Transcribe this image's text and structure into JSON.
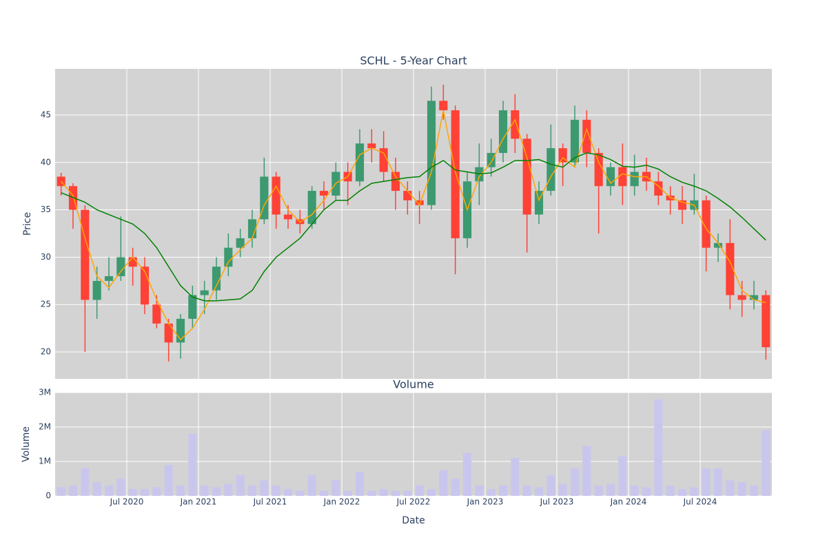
{
  "chart_data": [
    {
      "type": "candlestick",
      "title": "SCHL - 5-Year Chart",
      "y_label": "Price",
      "x": [
        "2020-01",
        "2020-02",
        "2020-03",
        "2020-04",
        "2020-05",
        "2020-06",
        "2020-07",
        "2020-08",
        "2020-09",
        "2020-10",
        "2020-11",
        "2020-12",
        "2021-01",
        "2021-02",
        "2021-03",
        "2021-04",
        "2021-05",
        "2021-06",
        "2021-07",
        "2021-08",
        "2021-09",
        "2021-10",
        "2021-11",
        "2021-12",
        "2022-01",
        "2022-02",
        "2022-03",
        "2022-04",
        "2022-05",
        "2022-06",
        "2022-07",
        "2022-08",
        "2022-09",
        "2022-10",
        "2022-11",
        "2022-12",
        "2023-01",
        "2023-02",
        "2023-03",
        "2023-04",
        "2023-05",
        "2023-06",
        "2023-07",
        "2023-08",
        "2023-09",
        "2023-10",
        "2023-11",
        "2023-12",
        "2024-01",
        "2024-02",
        "2024-03",
        "2024-04",
        "2024-05",
        "2024-06",
        "2024-07",
        "2024-08",
        "2024-09",
        "2024-10",
        "2024-11",
        "2024-12"
      ],
      "open": [
        38.5,
        37.5,
        35.0,
        25.5,
        27.5,
        28.0,
        30.0,
        29.0,
        25.0,
        23.0,
        21.0,
        23.5,
        26.0,
        26.5,
        29.0,
        31.0,
        32.0,
        34.0,
        38.5,
        34.5,
        34.0,
        33.5,
        37.0,
        36.5,
        39.0,
        38.0,
        42.0,
        41.5,
        39.0,
        37.0,
        36.0,
        35.5,
        46.5,
        45.5,
        32.0,
        38.0,
        39.5,
        41.0,
        45.5,
        42.5,
        34.5,
        37.0,
        41.5,
        40.0,
        44.5,
        41.0,
        37.5,
        39.5,
        37.5,
        39.0,
        38.0,
        36.5,
        36.0,
        35.0,
        36.0,
        31.0,
        31.5,
        26.0,
        25.5,
        26.0
      ],
      "high": [
        38.9,
        37.8,
        35.5,
        29.0,
        30.0,
        34.3,
        31.0,
        30.0,
        26.0,
        23.5,
        24.0,
        27.0,
        27.5,
        30.0,
        32.5,
        33.0,
        35.0,
        40.5,
        39.0,
        35.5,
        35.0,
        37.5,
        38.0,
        40.0,
        40.0,
        43.5,
        43.5,
        43.3,
        40.5,
        38.0,
        37.0,
        48.0,
        48.2,
        46.0,
        39.0,
        42.0,
        42.5,
        46.5,
        47.2,
        43.0,
        38.0,
        44.0,
        42.0,
        46.0,
        45.5,
        41.5,
        40.0,
        42.0,
        40.8,
        40.5,
        39.0,
        37.5,
        37.5,
        38.8,
        36.5,
        32.5,
        34.0,
        27.5,
        27.5,
        26.5
      ],
      "low": [
        36.5,
        33.0,
        20.0,
        23.5,
        26.5,
        27.5,
        27.0,
        24.0,
        22.5,
        19.0,
        19.3,
        22.5,
        24.0,
        25.5,
        28.0,
        30.0,
        31.0,
        33.5,
        33.0,
        33.0,
        32.5,
        33.0,
        35.0,
        36.0,
        35.5,
        37.5,
        40.0,
        38.0,
        35.0,
        34.5,
        33.5,
        35.0,
        44.5,
        28.2,
        31.0,
        35.5,
        38.5,
        40.0,
        41.0,
        30.5,
        33.5,
        36.5,
        37.5,
        39.5,
        39.5,
        32.5,
        36.5,
        35.5,
        36.5,
        37.0,
        35.5,
        34.5,
        33.5,
        34.5,
        28.5,
        29.5,
        24.5,
        23.7,
        24.5,
        19.2
      ],
      "close": [
        37.5,
        35.0,
        25.5,
        27.5,
        28.0,
        30.0,
        29.0,
        25.0,
        23.0,
        21.0,
        23.5,
        26.0,
        26.5,
        29.0,
        31.0,
        32.0,
        34.0,
        38.5,
        34.5,
        34.0,
        33.5,
        37.0,
        36.5,
        39.0,
        38.0,
        42.0,
        41.5,
        39.0,
        37.0,
        36.0,
        35.5,
        46.5,
        45.5,
        32.0,
        38.0,
        39.5,
        41.0,
        45.5,
        42.5,
        34.5,
        37.0,
        41.5,
        40.0,
        44.5,
        41.0,
        37.5,
        39.5,
        37.5,
        39.0,
        38.0,
        36.5,
        36.0,
        35.0,
        36.0,
        31.0,
        31.5,
        26.0,
        25.5,
        26.0,
        20.5
      ],
      "increasing_color": "#3d9970",
      "decreasing_color": "#ff4136",
      "lines": [
        {
          "color": "orange",
          "values": [
            38.0,
            36.5,
            32.0,
            28.0,
            26.8,
            28.5,
            30.0,
            28.5,
            25.5,
            23.0,
            21.3,
            22.5,
            24.5,
            27.0,
            29.5,
            30.8,
            32.0,
            35.5,
            37.5,
            35.0,
            33.7,
            34.5,
            36.0,
            37.8,
            38.5,
            40.8,
            41.5,
            41.0,
            38.5,
            37.0,
            35.5,
            39.0,
            45.5,
            39.0,
            35.0,
            38.5,
            40.0,
            42.5,
            44.5,
            40.5,
            36.0,
            38.5,
            40.5,
            39.5,
            43.5,
            40.0,
            37.8,
            38.8,
            38.5,
            38.5,
            37.5,
            36.3,
            35.8,
            35.5,
            33.0,
            31.5,
            29.5,
            26.5,
            25.5,
            25.2
          ]
        },
        {
          "color": "green",
          "values": [
            36.8,
            36.3,
            35.8,
            35.0,
            34.5,
            34.0,
            33.5,
            32.5,
            31.0,
            29.0,
            27.0,
            25.8,
            25.4,
            25.4,
            25.5,
            25.6,
            26.5,
            28.5,
            30.0,
            31.0,
            32.0,
            33.5,
            35.0,
            36.0,
            36.0,
            37.0,
            37.8,
            38.0,
            38.2,
            38.4,
            38.5,
            39.5,
            40.2,
            39.2,
            39.0,
            38.8,
            38.9,
            39.5,
            40.2,
            40.2,
            40.3,
            39.8,
            39.5,
            40.5,
            41.0,
            40.8,
            40.3,
            39.6,
            39.5,
            39.7,
            39.3,
            38.5,
            37.9,
            37.5,
            37.0,
            36.2,
            35.3,
            34.2,
            33.0,
            31.8
          ]
        }
      ],
      "xlim": [
        "2020-01",
        "2025-01"
      ],
      "ylim": [
        17.17,
        49.87
      ],
      "yticks": [
        20,
        25,
        30,
        35,
        40,
        45
      ],
      "grid": true
    },
    {
      "type": "bar",
      "title": "Volume",
      "y_label": "Volume",
      "x_label": "Date",
      "x": [
        "2020-01",
        "2020-02",
        "2020-03",
        "2020-04",
        "2020-05",
        "2020-06",
        "2020-07",
        "2020-08",
        "2020-09",
        "2020-10",
        "2020-11",
        "2020-12",
        "2021-01",
        "2021-02",
        "2021-03",
        "2021-04",
        "2021-05",
        "2021-06",
        "2021-07",
        "2021-08",
        "2021-09",
        "2021-10",
        "2021-11",
        "2021-12",
        "2022-01",
        "2022-02",
        "2022-03",
        "2022-04",
        "2022-05",
        "2022-06",
        "2022-07",
        "2022-08",
        "2022-09",
        "2022-10",
        "2022-11",
        "2022-12",
        "2023-01",
        "2023-02",
        "2023-03",
        "2023-04",
        "2023-05",
        "2023-06",
        "2023-07",
        "2023-08",
        "2023-09",
        "2023-10",
        "2023-11",
        "2023-12",
        "2024-01",
        "2024-02",
        "2024-03",
        "2024-04",
        "2024-05",
        "2024-06",
        "2024-07",
        "2024-08",
        "2024-09",
        "2024-10",
        "2024-11",
        "2024-12"
      ],
      "values": [
        250000,
        300000,
        800000,
        400000,
        300000,
        500000,
        200000,
        200000,
        250000,
        900000,
        300000,
        1800000,
        300000,
        250000,
        350000,
        600000,
        300000,
        450000,
        300000,
        200000,
        150000,
        600000,
        150000,
        450000,
        150000,
        700000,
        150000,
        200000,
        150000,
        150000,
        300000,
        200000,
        750000,
        500000,
        1250000,
        300000,
        200000,
        300000,
        1100000,
        300000,
        250000,
        600000,
        350000,
        800000,
        1450000,
        300000,
        350000,
        1150000,
        300000,
        250000,
        2800000,
        300000,
        200000,
        250000,
        800000,
        800000,
        450000,
        400000,
        300000,
        1900000
      ],
      "color": "#c9c6ee",
      "xlim": [
        "2020-01",
        "2025-01"
      ],
      "ylim": [
        0,
        3000000
      ],
      "yticks": [
        0,
        {
          "value": 1000000,
          "label": "1M"
        },
        {
          "value": 2000000,
          "label": "2M"
        },
        {
          "value": 3000000,
          "label": "3M"
        }
      ],
      "xticks": [
        {
          "value": "2020-07",
          "label": "Jul 2020"
        },
        {
          "value": "2021-01",
          "label": "Jan 2021"
        },
        {
          "value": "2021-07",
          "label": "Jul 2021"
        },
        {
          "value": "2022-01",
          "label": "Jan 2022"
        },
        {
          "value": "2022-07",
          "label": "Jul 2022"
        },
        {
          "value": "2023-01",
          "label": "Jan 2023"
        },
        {
          "value": "2023-07",
          "label": "Jul 2023"
        },
        {
          "value": "2024-01",
          "label": "Jan 2024"
        },
        {
          "value": "2024-07",
          "label": "Jul 2024"
        }
      ],
      "grid": true
    }
  ]
}
